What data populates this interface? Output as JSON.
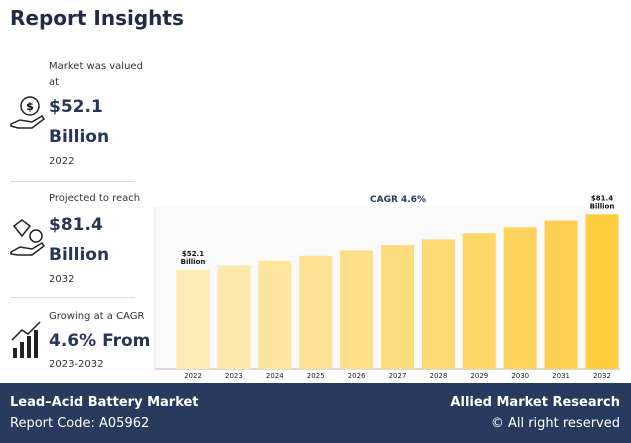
{
  "header": {
    "title": "Report Insights"
  },
  "insights": [
    {
      "label": "Market was valued at",
      "value": "$52.1 Billion",
      "period": "2022"
    },
    {
      "label": "Projected to reach",
      "value": "$81.4 Billion",
      "period": "2032"
    },
    {
      "label": "Growing at a CAGR",
      "value": "4.6% From",
      "period": "2023-2032"
    }
  ],
  "chart_data": {
    "type": "bar",
    "title": "CAGR 4.6%",
    "categories": [
      "2022",
      "2023",
      "2024",
      "2025",
      "2026",
      "2027",
      "2028",
      "2029",
      "2030",
      "2031",
      "2032"
    ],
    "values": [
      52.1,
      54.5,
      57.0,
      59.6,
      62.4,
      65.2,
      68.2,
      71.4,
      74.6,
      78.1,
      81.4
    ],
    "value_labels": [
      [
        "$52.1",
        "Billion"
      ],
      null,
      null,
      null,
      null,
      null,
      null,
      null,
      null,
      null,
      [
        "$81.4",
        "Billion"
      ]
    ],
    "colors": [
      "#fdebb6",
      "#fde8ab",
      "#fde5a0",
      "#fde295",
      "#fddf8a",
      "#fddc7e",
      "#fdd973",
      "#fdd668",
      "#fdd35d",
      "#fdd052",
      "#fdcd3f"
    ],
    "ylim": [
      0,
      90
    ]
  },
  "footer": {
    "report": "Lead–Acid Battery Market",
    "code": "Report Code: A05962",
    "brand": "Allied Market Research",
    "rights": "© All right reserved"
  }
}
